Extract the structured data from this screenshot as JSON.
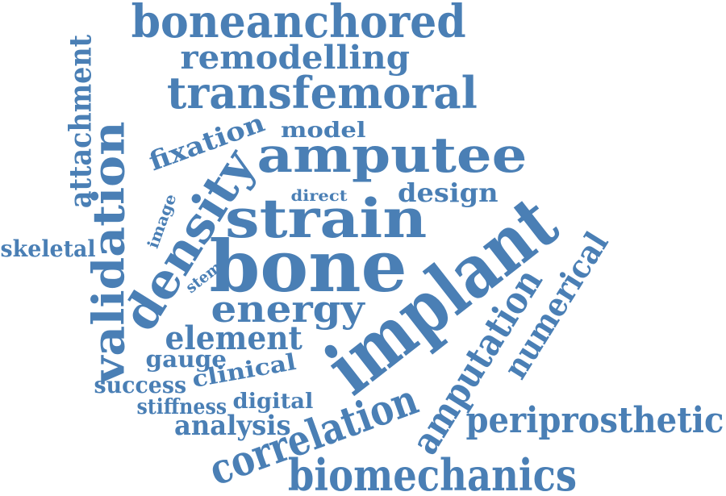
{
  "cloud": {
    "color": "#4a7fb5",
    "words": [
      {
        "text": "boneanchored"
      },
      {
        "text": "remodelling"
      },
      {
        "text": "transfemoral"
      },
      {
        "text": "attachment"
      },
      {
        "text": "fixation"
      },
      {
        "text": "model"
      },
      {
        "text": "amputee"
      },
      {
        "text": "validation"
      },
      {
        "text": "density"
      },
      {
        "text": "direct"
      },
      {
        "text": "design"
      },
      {
        "text": "image"
      },
      {
        "text": "strain"
      },
      {
        "text": "skeletal"
      },
      {
        "text": "stem"
      },
      {
        "text": "bone"
      },
      {
        "text": "implant"
      },
      {
        "text": "amputation"
      },
      {
        "text": "numerical"
      },
      {
        "text": "energy"
      },
      {
        "text": "element"
      },
      {
        "text": "gauge"
      },
      {
        "text": "clinical"
      },
      {
        "text": "success"
      },
      {
        "text": "digital"
      },
      {
        "text": "stiffness"
      },
      {
        "text": "analysis"
      },
      {
        "text": "periprosthetic"
      },
      {
        "text": "correlation"
      },
      {
        "text": "biomechanics"
      }
    ]
  }
}
